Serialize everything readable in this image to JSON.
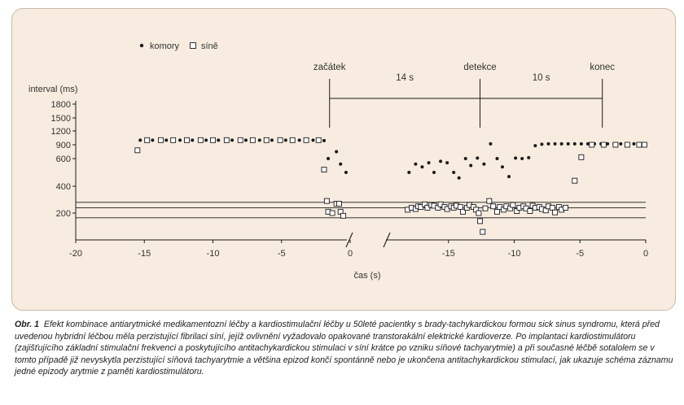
{
  "chart_data": {
    "type": "scatter",
    "ylabel": "interval (ms)",
    "xlabel": "čas (s)",
    "y_ticks": [
      200,
      400,
      600,
      900,
      1200,
      1500,
      1800
    ],
    "ylim": [
      0,
      1800
    ],
    "left_x_ticks": [
      -20,
      -15,
      -10,
      -5,
      0
    ],
    "right_x_ticks": [
      -15,
      -10,
      -5,
      0
    ],
    "legend": [
      {
        "marker": "filled-dot",
        "label": "komory"
      },
      {
        "marker": "open-square",
        "label": "síně"
      }
    ],
    "legend_position": "top-left",
    "markers": [
      {
        "label": "začátek",
        "segment": "left",
        "x": -1.5
      },
      {
        "label": "detekce",
        "segment": "right",
        "x": -12.6
      },
      {
        "label": "konec",
        "segment": "right",
        "x": -3.3
      }
    ],
    "intervals": [
      {
        "label": "14 s",
        "from": "začátek",
        "to": "detekce"
      },
      {
        "label": "10 s",
        "from": "detekce",
        "to": "konec"
      }
    ],
    "reference_lines_ms": [
      280,
      240,
      165
    ],
    "series": [
      {
        "name": "komory",
        "marker": "filled-dot",
        "segments": [
          {
            "axis": "left",
            "points": [
              [
                -15.3,
                1000
              ],
              [
                -14.4,
                1000
              ],
              [
                -13.4,
                1000
              ],
              [
                -12.4,
                1000
              ],
              [
                -11.5,
                1000
              ],
              [
                -10.5,
                1000
              ],
              [
                -9.6,
                1000
              ],
              [
                -8.6,
                1000
              ],
              [
                -7.6,
                1000
              ],
              [
                -6.6,
                1000
              ],
              [
                -5.7,
                1000
              ],
              [
                -4.7,
                1000
              ],
              [
                -3.7,
                1000
              ],
              [
                -2.7,
                1000
              ],
              [
                -1.9,
                990
              ],
              [
                -1.6,
                600
              ],
              [
                -1.0,
                750
              ],
              [
                -0.7,
                560
              ],
              [
                -0.3,
                500
              ]
            ]
          },
          {
            "axis": "right",
            "points": [
              [
                -18.0,
                500
              ],
              [
                -17.5,
                560
              ],
              [
                -17.0,
                540
              ],
              [
                -16.5,
                570
              ],
              [
                -16.1,
                500
              ],
              [
                -15.6,
                580
              ],
              [
                -15.1,
                570
              ],
              [
                -14.6,
                500
              ],
              [
                -14.2,
                460
              ],
              [
                -13.7,
                600
              ],
              [
                -13.3,
                550
              ],
              [
                -12.8,
                610
              ],
              [
                -12.3,
                560
              ],
              [
                -11.8,
                920
              ],
              [
                -11.3,
                600
              ],
              [
                -10.9,
                540
              ],
              [
                -10.4,
                470
              ],
              [
                -9.9,
                610
              ],
              [
                -9.4,
                600
              ],
              [
                -8.9,
                620
              ],
              [
                -8.4,
                880
              ],
              [
                -7.9,
                910
              ],
              [
                -7.4,
                920
              ],
              [
                -6.9,
                920
              ],
              [
                -6.4,
                920
              ],
              [
                -5.9,
                920
              ],
              [
                -5.4,
                920
              ],
              [
                -4.9,
                920
              ],
              [
                -4.4,
                920
              ],
              [
                -3.9,
                920
              ],
              [
                -3.4,
                920
              ],
              [
                -2.9,
                920
              ],
              [
                -2.4,
                920
              ],
              [
                -1.9,
                920
              ],
              [
                -1.4,
                920
              ],
              [
                -0.9,
                920
              ],
              [
                -0.1,
                920
              ]
            ]
          }
        ]
      },
      {
        "name": "síně",
        "marker": "open-square",
        "segments": [
          {
            "axis": "left",
            "points": [
              [
                -15.5,
                780
              ],
              [
                -14.8,
                1000
              ],
              [
                -13.8,
                1000
              ],
              [
                -12.9,
                1000
              ],
              [
                -11.9,
                1000
              ],
              [
                -10.9,
                1000
              ],
              [
                -10.0,
                1000
              ],
              [
                -9.0,
                1000
              ],
              [
                -8.0,
                1000
              ],
              [
                -7.1,
                1000
              ],
              [
                -6.1,
                1000
              ],
              [
                -5.1,
                1000
              ],
              [
                -4.2,
                1000
              ],
              [
                -3.2,
                1000
              ],
              [
                -2.3,
                1000
              ],
              [
                -1.9,
                520
              ],
              [
                -1.7,
                290
              ],
              [
                -1.6,
                210
              ],
              [
                -1.3,
                200
              ],
              [
                -1.0,
                270
              ],
              [
                -0.8,
                270
              ],
              [
                -0.7,
                210
              ],
              [
                -0.5,
                180
              ]
            ]
          },
          {
            "axis": "right",
            "points": [
              [
                -18.1,
                225
              ],
              [
                -17.8,
                240
              ],
              [
                -17.5,
                230
              ],
              [
                -17.3,
                250
              ],
              [
                -17.1,
                245
              ],
              [
                -16.8,
                265
              ],
              [
                -16.6,
                240
              ],
              [
                -16.3,
                260
              ],
              [
                -16.1,
                255
              ],
              [
                -15.8,
                240
              ],
              [
                -15.6,
                265
              ],
              [
                -15.3,
                245
              ],
              [
                -15.1,
                230
              ],
              [
                -14.8,
                250
              ],
              [
                -14.6,
                240
              ],
              [
                -14.4,
                255
              ],
              [
                -14.1,
                245
              ],
              [
                -13.9,
                210
              ],
              [
                -13.6,
                240
              ],
              [
                -13.4,
                260
              ],
              [
                -13.1,
                245
              ],
              [
                -12.9,
                225
              ],
              [
                -12.7,
                200
              ],
              [
                -12.6,
                140
              ],
              [
                -12.4,
                60
              ],
              [
                -12.2,
                235
              ],
              [
                -11.9,
                290
              ],
              [
                -11.6,
                250
              ],
              [
                -11.3,
                210
              ],
              [
                -11.1,
                245
              ],
              [
                -10.8,
                225
              ],
              [
                -10.6,
                250
              ],
              [
                -10.3,
                235
              ],
              [
                -10.1,
                260
              ],
              [
                -9.8,
                215
              ],
              [
                -9.6,
                240
              ],
              [
                -9.3,
                250
              ],
              [
                -9.1,
                235
              ],
              [
                -8.8,
                215
              ],
              [
                -8.6,
                255
              ],
              [
                -8.4,
                240
              ],
              [
                -8.1,
                245
              ],
              [
                -7.9,
                230
              ],
              [
                -7.6,
                220
              ],
              [
                -7.4,
                250
              ],
              [
                -7.1,
                240
              ],
              [
                -6.9,
                205
              ],
              [
                -6.6,
                245
              ],
              [
                -6.4,
                225
              ],
              [
                -6.1,
                240
              ],
              [
                -5.4,
                440
              ],
              [
                -4.9,
                630
              ],
              [
                -4.1,
                900
              ],
              [
                -3.2,
                900
              ],
              [
                -2.3,
                900
              ],
              [
                -1.4,
                900
              ],
              [
                -0.5,
                900
              ],
              [
                -0.1,
                900
              ]
            ]
          }
        ]
      }
    ]
  },
  "caption": {
    "label": "Obr. 1",
    "text": "Efekt kombinace antiarytmické medikamentozní léčby a kardiostimulační léčby u 50leté pacientky s brady-tachykardickou formou sick sinus syndromu, která před uvedenou hybridní léčbou měla perzistující fibrilaci síní, jejíž ovlivnění vyžadovalo opakované transtorakální elektrické kardioverze. Po implantaci kardiostimulátoru (zajišťujícího základní stimulační frekvenci a poskytujícího antitachykardickou stimulaci v síní krátce po vzniku síňové tachyarytmie) a při současné léčbě sotalolem se v tomto případě již nevyskytla perzistující síňová tachyarytmie a většina epizod končí spontánně nebo je ukončena antitachykardickou stimulací, jak ukazuje schéma záznamu jedné epizody arytmie z paměti kardiostimulátoru."
  },
  "colors": {
    "panel_background": "#f7ecdf",
    "ink": "#1a1a1a"
  }
}
